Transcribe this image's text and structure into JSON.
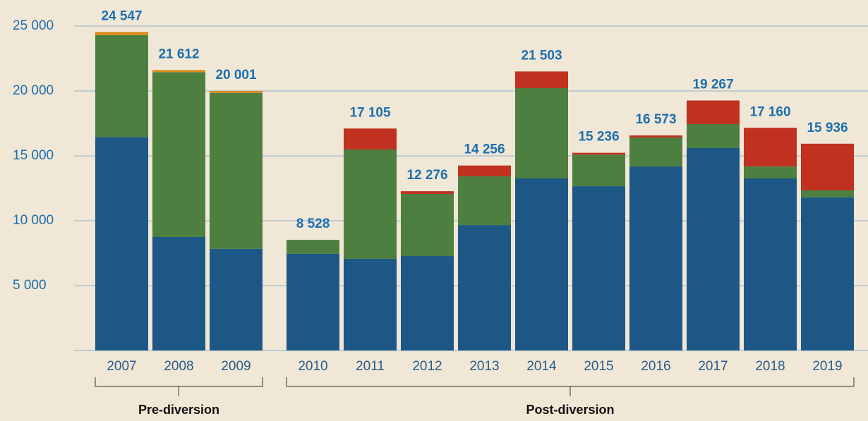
{
  "chart_data": {
    "type": "stacked_bar",
    "categories": [
      "2007",
      "2008",
      "2009",
      "2010",
      "2011",
      "2012",
      "2013",
      "2014",
      "2015",
      "2016",
      "2017",
      "2018",
      "2019"
    ],
    "series": [
      {
        "color": "#1d5785",
        "values": [
          16450,
          8750,
          7830,
          7450,
          7070,
          7280,
          9670,
          13260,
          12660,
          14180,
          15600,
          13260,
          11790
        ]
      },
      {
        "color": "#4d8040",
        "values": [
          7850,
          12700,
          12020,
          1078,
          8420,
          4785,
          3750,
          6960,
          2430,
          2230,
          1850,
          920,
          550
        ]
      },
      {
        "color": "#d98b1e",
        "values": [
          247,
          162,
          151,
          0,
          0,
          0,
          0,
          0,
          0,
          0,
          0,
          0,
          0
        ]
      },
      {
        "color": "#c0321f",
        "values": [
          0,
          0,
          0,
          0,
          1615,
          211,
          836,
          1283,
          146,
          163,
          1817,
          2980,
          3596
        ]
      }
    ],
    "totals": [
      24547,
      21612,
      20001,
      8528,
      17105,
      12276,
      14256,
      21503,
      15236,
      16573,
      19267,
      17160,
      15936
    ],
    "total_labels": [
      "24 547",
      "21 612",
      "20 001",
      "8 528",
      "17 105",
      "12 276",
      "14 256",
      "21 503",
      "15 236",
      "16 573",
      "19 267",
      "17 160",
      "15 936"
    ],
    "ylim": [
      0,
      25000
    ],
    "yticks": [
      {
        "value": 5000,
        "label": "5 000"
      },
      {
        "value": 10000,
        "label": "10 000"
      },
      {
        "value": 15000,
        "label": "15 000"
      },
      {
        "value": 20000,
        "label": "20 000"
      },
      {
        "value": 25000,
        "label": "25 000"
      }
    ],
    "grid": true,
    "groups": [
      {
        "name": "Pre-diversion",
        "from": "2007",
        "to": "2009"
      },
      {
        "name": "Post-diversion",
        "from": "2010",
        "to": "2019"
      }
    ]
  }
}
